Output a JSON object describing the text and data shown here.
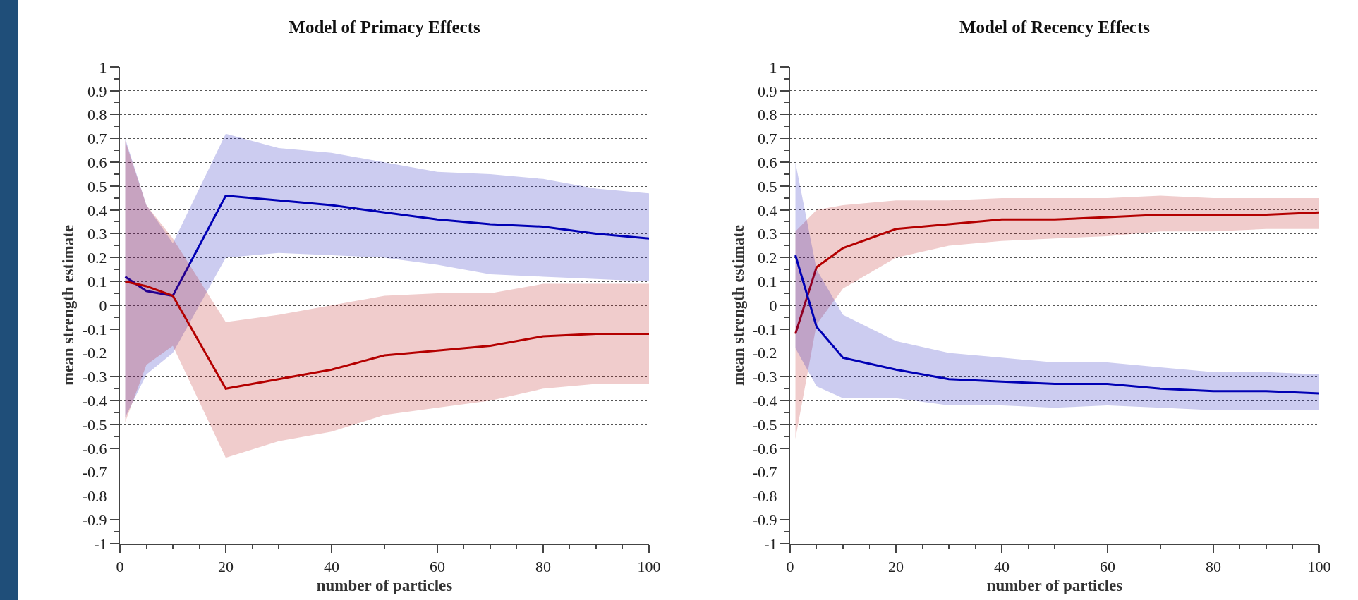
{
  "chart_data": [
    {
      "type": "line",
      "title": "Model of Primacy Effects",
      "xlabel": "number of particles",
      "ylabel": "mean strength estimate",
      "x": [
        1,
        5,
        10,
        20,
        30,
        40,
        50,
        60,
        70,
        80,
        90,
        100
      ],
      "series": [
        {
          "color": "#0000b4",
          "values": [
            0.12,
            0.06,
            0.04,
            0.46,
            0.44,
            0.42,
            0.39,
            0.36,
            0.34,
            0.33,
            0.3,
            0.28
          ],
          "upper": [
            0.7,
            0.42,
            0.26,
            0.72,
            0.66,
            0.64,
            0.6,
            0.56,
            0.55,
            0.53,
            0.49,
            0.47
          ],
          "lower": [
            -0.47,
            -0.29,
            -0.2,
            0.2,
            0.22,
            0.21,
            0.2,
            0.17,
            0.13,
            0.12,
            0.11,
            0.1
          ]
        },
        {
          "color": "#b40000",
          "values": [
            0.1,
            0.08,
            0.04,
            -0.35,
            -0.31,
            -0.27,
            -0.21,
            -0.19,
            -0.17,
            -0.13,
            -0.12,
            -0.12
          ],
          "upper": [
            0.69,
            0.42,
            0.28,
            -0.07,
            -0.04,
            0.0,
            0.04,
            0.05,
            0.05,
            0.09,
            0.09,
            0.09
          ],
          "lower": [
            -0.49,
            -0.25,
            -0.17,
            -0.64,
            -0.57,
            -0.53,
            -0.46,
            -0.43,
            -0.4,
            -0.35,
            -0.33,
            -0.33
          ]
        }
      ],
      "xlim": [
        0,
        100
      ],
      "xticks": [
        0,
        20,
        40,
        60,
        80,
        100
      ],
      "ylim": [
        -1,
        1
      ],
      "yticks": [
        -1,
        -0.9,
        -0.8,
        -0.7,
        -0.6,
        -0.5,
        -0.4,
        -0.3,
        -0.2,
        -0.1,
        0,
        0.1,
        0.2,
        0.3,
        0.4,
        0.5,
        0.6,
        0.7,
        0.8,
        0.9,
        1
      ],
      "grid": "y",
      "marker": "none",
      "line_style": "solid"
    },
    {
      "type": "line",
      "title": "Model of Recency Effects",
      "xlabel": "number of particles",
      "ylabel": "mean strength estimate",
      "x": [
        1,
        5,
        10,
        20,
        30,
        40,
        50,
        60,
        70,
        80,
        90,
        100
      ],
      "series": [
        {
          "color": "#b40000",
          "values": [
            -0.12,
            0.16,
            0.24,
            0.32,
            0.34,
            0.36,
            0.36,
            0.37,
            0.38,
            0.38,
            0.38,
            0.39
          ],
          "upper": [
            0.31,
            0.4,
            0.42,
            0.44,
            0.44,
            0.45,
            0.45,
            0.45,
            0.46,
            0.45,
            0.45,
            0.45
          ],
          "lower": [
            -0.56,
            -0.08,
            0.07,
            0.2,
            0.25,
            0.27,
            0.28,
            0.29,
            0.31,
            0.31,
            0.32,
            0.32
          ]
        },
        {
          "color": "#0000b4",
          "values": [
            0.21,
            -0.09,
            -0.22,
            -0.27,
            -0.31,
            -0.32,
            -0.33,
            -0.33,
            -0.35,
            -0.36,
            -0.36,
            -0.37
          ],
          "upper": [
            0.6,
            0.15,
            -0.04,
            -0.15,
            -0.2,
            -0.22,
            -0.24,
            -0.24,
            -0.26,
            -0.28,
            -0.28,
            -0.29
          ],
          "lower": [
            -0.18,
            -0.34,
            -0.39,
            -0.39,
            -0.42,
            -0.42,
            -0.43,
            -0.42,
            -0.43,
            -0.44,
            -0.44,
            -0.44
          ]
        }
      ],
      "xlim": [
        0,
        100
      ],
      "xticks": [
        0,
        20,
        40,
        60,
        80,
        100
      ],
      "ylim": [
        -1,
        1
      ],
      "yticks": [
        -1,
        -0.9,
        -0.8,
        -0.7,
        -0.6,
        -0.5,
        -0.4,
        -0.3,
        -0.2,
        -0.1,
        0,
        0.1,
        0.2,
        0.3,
        0.4,
        0.5,
        0.6,
        0.7,
        0.8,
        0.9,
        1
      ],
      "grid": "y",
      "marker": "none",
      "line_style": "solid"
    }
  ]
}
